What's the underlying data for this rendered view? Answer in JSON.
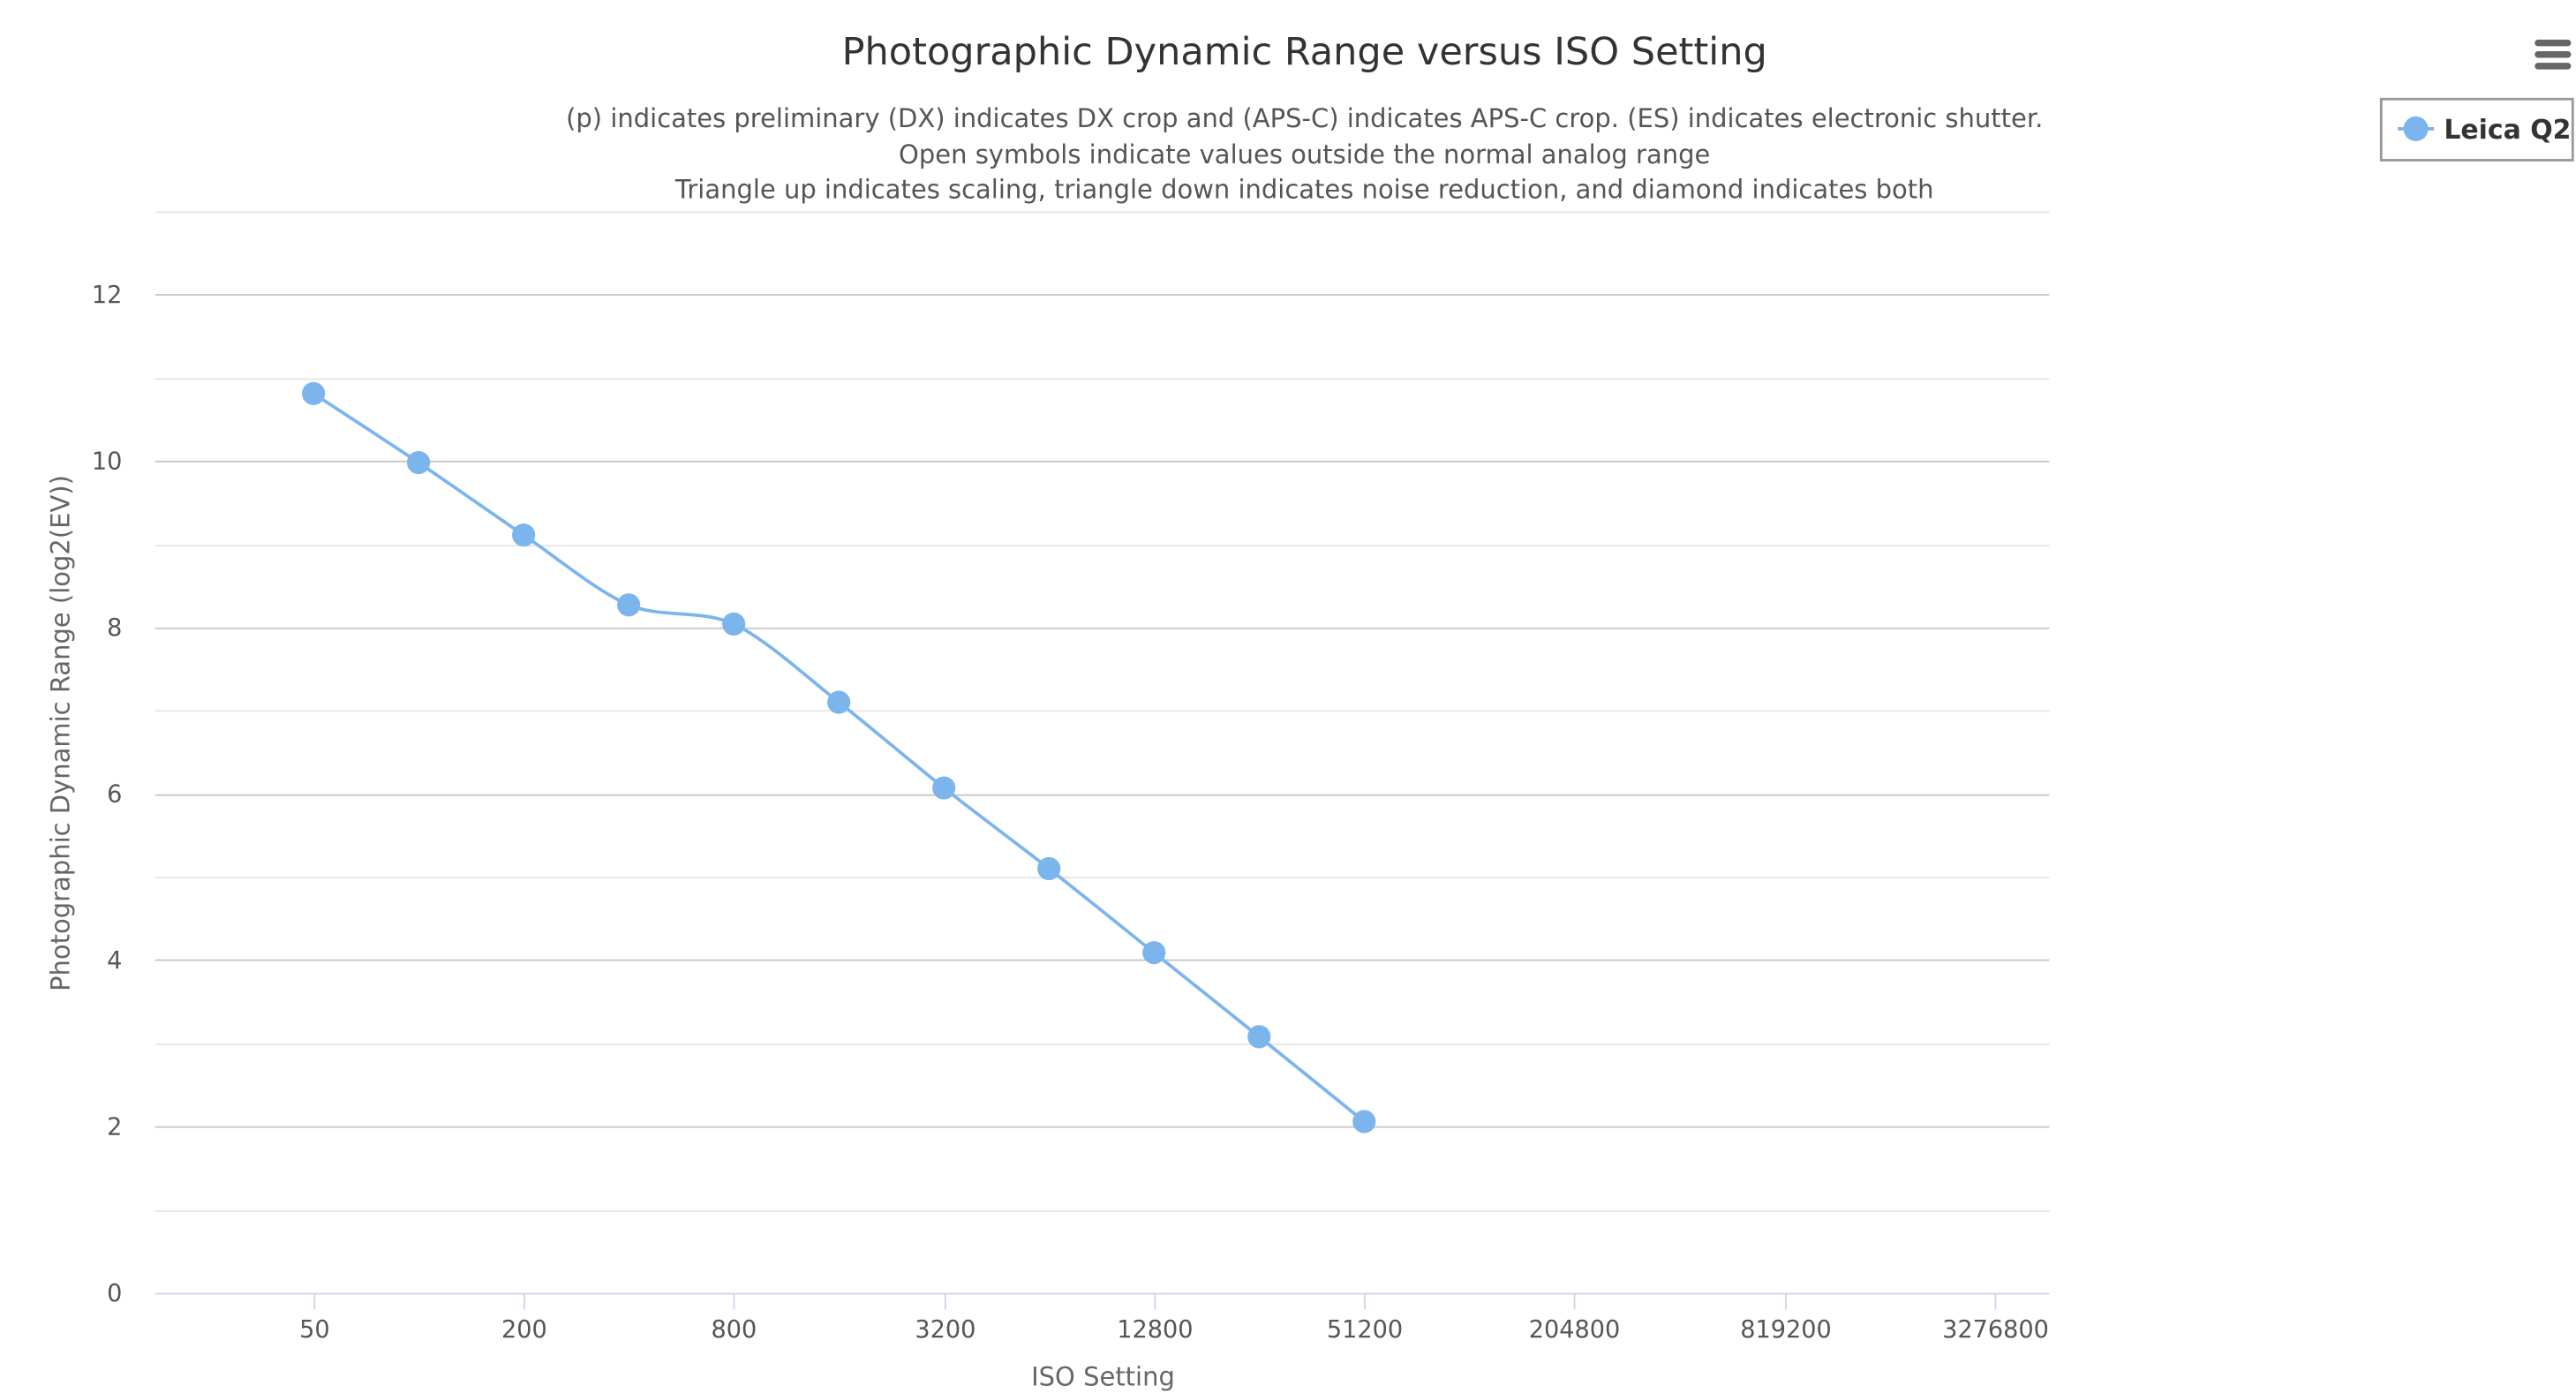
{
  "chart_data": {
    "type": "line",
    "title": "Photographic Dynamic Range versus ISO Setting",
    "subtitle": [
      "(p) indicates preliminary (DX) indicates DX crop and (APS-C) indicates APS-C crop. (ES) indicates electronic shutter.",
      "Open symbols indicate values outside the normal analog range",
      "Triangle up indicates scaling, triangle down indicates noise reduction, and diamond indicates both"
    ],
    "xlabel": "ISO Setting",
    "ylabel": "Photographic Dynamic Range (log2(EV))",
    "x_scale": "log2",
    "xlim": [
      17.6,
      4700000
    ],
    "ylim": [
      0,
      13
    ],
    "x_ticks": [
      "50",
      "200",
      "800",
      "3200",
      "12800",
      "51200",
      "204800",
      "819200",
      "3276800"
    ],
    "x_tick_values": [
      50,
      200,
      800,
      3200,
      12800,
      51200,
      204800,
      819200,
      3276800
    ],
    "y_ticks": [
      0,
      2,
      4,
      6,
      8,
      10,
      12
    ],
    "grid": true,
    "legend_position": "top-right",
    "series": [
      {
        "name": "Leica Q2",
        "color": "#7cb5ec",
        "x": [
          50,
          100,
          200,
          400,
          800,
          1600,
          3200,
          6400,
          12800,
          25600,
          51200
        ],
        "y": [
          10.81,
          9.98,
          9.11,
          8.27,
          8.04,
          7.1,
          6.07,
          5.1,
          4.09,
          3.08,
          2.06
        ]
      }
    ]
  },
  "menu": {
    "icon": "hamburger-menu-icon"
  }
}
